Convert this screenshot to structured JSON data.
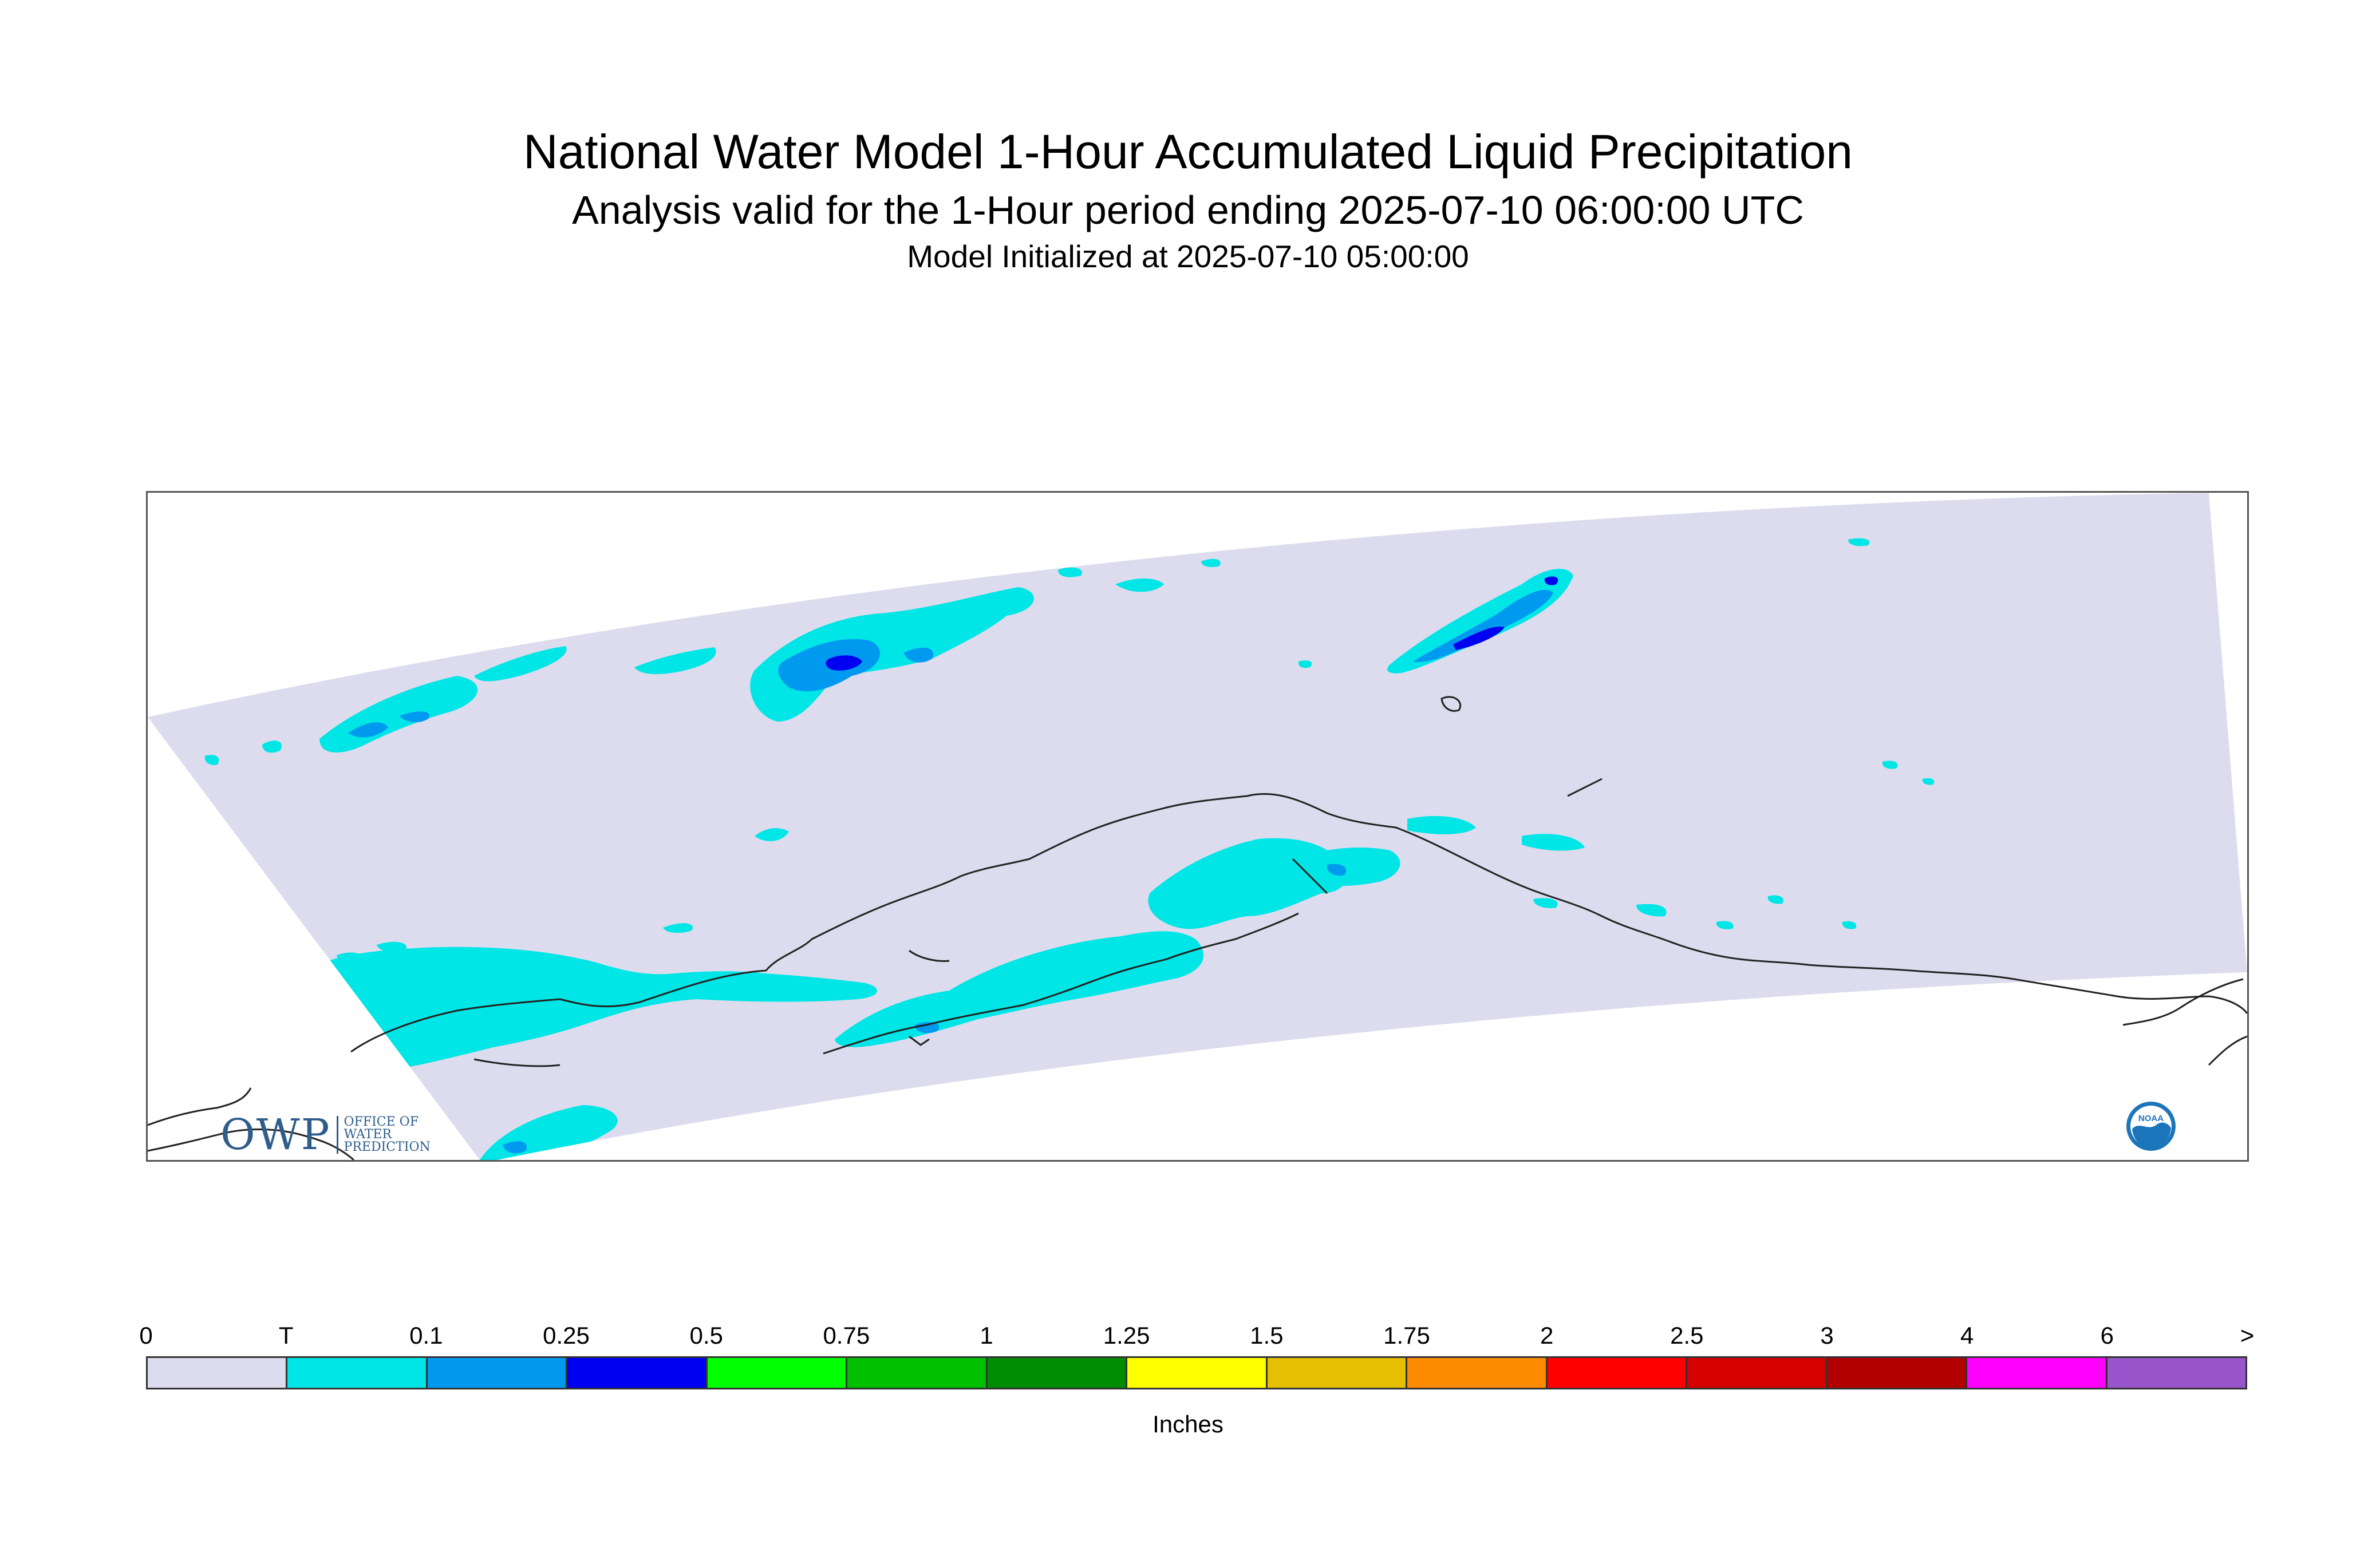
{
  "header": {
    "title": "National Water Model 1-Hour Accumulated Liquid Precipitation",
    "subtitle": "Analysis valid for the 1-Hour period ending 2025-07-10 06:00:00 UTC",
    "initialized": "Model Initialized at 2025-07-10 05:00:00"
  },
  "logos": {
    "owp": {
      "letters": "OWP",
      "line1": "OFFICE OF",
      "line2": "WATER",
      "line3": "PREDICTION"
    },
    "noaa": {
      "text": "NOAA"
    }
  },
  "legend": {
    "units": "Inches",
    "ticks": [
      "0",
      "T",
      "0.1",
      "0.25",
      "0.5",
      "0.75",
      "1",
      "1.25",
      "1.5",
      "1.75",
      "2",
      "2.5",
      "3",
      "4",
      "6",
      ">"
    ],
    "colors": [
      "#dcdcee",
      "#00e5e5",
      "#0099f0",
      "#0000f0",
      "#00ff00",
      "#00c000",
      "#008c00",
      "#ffff00",
      "#e5bf00",
      "#ff8c00",
      "#ff0000",
      "#d50000",
      "#b20000",
      "#ff00ff",
      "#9955cc"
    ]
  },
  "map": {
    "domain_color": "#dcdcee",
    "coast_color": "#222222"
  }
}
